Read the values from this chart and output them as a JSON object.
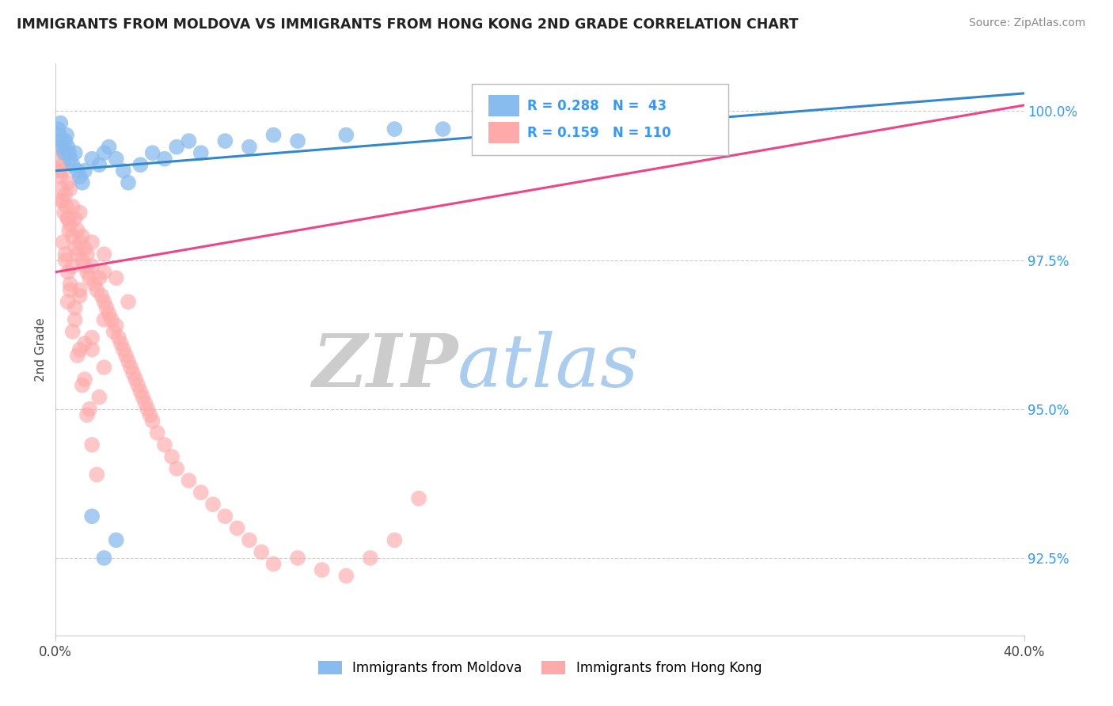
{
  "title": "IMMIGRANTS FROM MOLDOVA VS IMMIGRANTS FROM HONG KONG 2ND GRADE CORRELATION CHART",
  "source": "Source: ZipAtlas.com",
  "ylabel_label": "2nd Grade",
  "legend_blue_label": "Immigrants from Moldova",
  "legend_pink_label": "Immigrants from Hong Kong",
  "xmin": 0.0,
  "xmax": 40.0,
  "ymin": 91.2,
  "ymax": 100.8,
  "yticks": [
    92.5,
    95.0,
    97.5,
    100.0
  ],
  "ytick_labels": [
    "92.5%",
    "95.0%",
    "97.5%",
    "100.0%"
  ],
  "blue_color": "#88bbee",
  "pink_color": "#ffaaaa",
  "blue_line_color": "#3388cc",
  "pink_line_color": "#ee4488",
  "watermark_zip_color": "#cccccc",
  "watermark_atlas_color": "#aaccee",
  "grid_color": "#cccccc",
  "blue_line_x0": 0,
  "blue_line_y0": 99.0,
  "blue_line_x1": 40,
  "blue_line_y1": 100.3,
  "pink_line_x0": 0,
  "pink_line_y0": 97.3,
  "pink_line_x1": 40,
  "pink_line_y1": 100.1,
  "blue_N": 43,
  "pink_N": 110
}
